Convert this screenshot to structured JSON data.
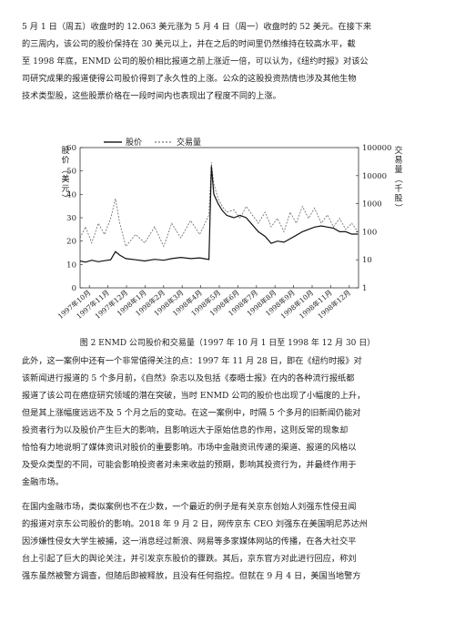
{
  "para1": [
    "5 月 1 日（周五）收盘时的 12.063 美元涨为 5 月 4 日（周一）收盘时的 52 美元。在接下来",
    "的三周内，该公司的股价保持在 30 美元以上，并在之后的时间里仍然维持在较高水平，截",
    "至 1998 年底，ENMD 公司的股价相比报道之前上涨近一倍，可以认为，《纽约时报》对该公",
    "司研究成果的报道使得公司股价得到了永久性的上涨。公众的这股投资热情也涉及其他生物",
    "技术类型股，这些股票价格在一段时间内也表现出了程度不同的上涨。"
  ],
  "chart_data": {
    "type": "line",
    "legend": [
      {
        "name": "股价",
        "style": "solid"
      },
      {
        "name": "交易量",
        "style": "dashed"
      }
    ],
    "ylabel_left": "股价（美元）",
    "ylabel_right": "交易量（千股）",
    "left_axis": {
      "min": 0,
      "max": 60,
      "ticks": [
        0,
        10,
        20,
        30,
        40,
        50,
        60
      ]
    },
    "right_axis": {
      "scale": "log",
      "ticks": [
        1,
        10,
        100,
        1000,
        10000,
        100000
      ]
    },
    "x_ticks": [
      "1997年10月",
      "1997年11月",
      "1997年12月",
      "1998年1月",
      "1998年2月",
      "1998年3月",
      "1998年4月",
      "1998年5月",
      "1998年6月",
      "1998年7月",
      "1998年8月",
      "1998年9月",
      "1998年10月",
      "1998年11月",
      "1998年12月"
    ],
    "price_series": [
      [
        "1997-10-01",
        11.5
      ],
      [
        "1997-10-10",
        11.0
      ],
      [
        "1997-10-20",
        11.8
      ],
      [
        "1997-10-31",
        11.2
      ],
      [
        "1997-11-10",
        11.6
      ],
      [
        "1997-11-20",
        12.0
      ],
      [
        "1997-11-28",
        15.5
      ],
      [
        "1997-12-05",
        14.0
      ],
      [
        "1997-12-15",
        12.5
      ],
      [
        "1997-12-31",
        12.0
      ],
      [
        "1998-01-15",
        11.5
      ],
      [
        "1998-01-31",
        12.2
      ],
      [
        "1998-02-15",
        11.8
      ],
      [
        "1998-02-28",
        12.5
      ],
      [
        "1998-03-15",
        13.0
      ],
      [
        "1998-03-31",
        12.5
      ],
      [
        "1998-04-15",
        12.8
      ],
      [
        "1998-04-30",
        12.1
      ],
      [
        "1998-05-04",
        52.0
      ],
      [
        "1998-05-08",
        40.0
      ],
      [
        "1998-05-15",
        36.0
      ],
      [
        "1998-05-22",
        33.0
      ],
      [
        "1998-05-29",
        31.0
      ],
      [
        "1998-06-10",
        30.0
      ],
      [
        "1998-06-20",
        31.0
      ],
      [
        "1998-06-30",
        30.0
      ],
      [
        "1998-07-10",
        27.0
      ],
      [
        "1998-07-20",
        24.0
      ],
      [
        "1998-07-31",
        22.0
      ],
      [
        "1998-08-10",
        19.0
      ],
      [
        "1998-08-20",
        20.0
      ],
      [
        "1998-08-31",
        19.5
      ],
      [
        "1998-09-10",
        21.0
      ],
      [
        "1998-09-20",
        22.5
      ],
      [
        "1998-09-30",
        24.0
      ],
      [
        "1998-10-10",
        25.0
      ],
      [
        "1998-10-20",
        26.0
      ],
      [
        "1998-10-31",
        26.5
      ],
      [
        "1998-11-10",
        26.0
      ],
      [
        "1998-11-20",
        25.5
      ],
      [
        "1998-11-30",
        24.0
      ],
      [
        "1998-12-10",
        24.0
      ],
      [
        "1998-12-20",
        23.0
      ],
      [
        "1998-12-30",
        23.0
      ]
    ],
    "volume_series": [
      [
        "1997-10-01",
        60
      ],
      [
        "1997-10-10",
        150
      ],
      [
        "1997-10-20",
        40
      ],
      [
        "1997-10-31",
        200
      ],
      [
        "1997-11-10",
        80
      ],
      [
        "1997-11-20",
        300
      ],
      [
        "1997-11-28",
        1500
      ],
      [
        "1997-12-05",
        200
      ],
      [
        "1997-12-15",
        30
      ],
      [
        "1997-12-31",
        80
      ],
      [
        "1998-01-15",
        40
      ],
      [
        "1998-01-31",
        150
      ],
      [
        "1998-02-15",
        30
      ],
      [
        "1998-02-28",
        200
      ],
      [
        "1998-03-15",
        60
      ],
      [
        "1998-03-31",
        250
      ],
      [
        "1998-04-15",
        80
      ],
      [
        "1998-04-30",
        400
      ],
      [
        "1998-05-04",
        30000
      ],
      [
        "1998-05-08",
        5000
      ],
      [
        "1998-05-15",
        1500
      ],
      [
        "1998-05-22",
        800
      ],
      [
        "1998-05-29",
        500
      ],
      [
        "1998-06-10",
        600
      ],
      [
        "1998-06-20",
        300
      ],
      [
        "1998-06-30",
        800
      ],
      [
        "1998-07-10",
        400
      ],
      [
        "1998-07-20",
        200
      ],
      [
        "1998-07-31",
        500
      ],
      [
        "1998-08-10",
        150
      ],
      [
        "1998-08-20",
        300
      ],
      [
        "1998-08-31",
        100
      ],
      [
        "1998-09-10",
        500
      ],
      [
        "1998-09-20",
        200
      ],
      [
        "1998-09-30",
        800
      ],
      [
        "1998-10-10",
        300
      ],
      [
        "1998-10-20",
        700
      ],
      [
        "1998-10-31",
        200
      ],
      [
        "1998-11-10",
        400
      ],
      [
        "1998-11-20",
        150
      ],
      [
        "1998-11-30",
        300
      ],
      [
        "1998-12-10",
        120
      ],
      [
        "1998-12-20",
        200
      ],
      [
        "1998-12-30",
        100
      ]
    ]
  },
  "caption": "图 2 ENMD 公司股价和交易量（1997 年 10 月 1 日至 1998 年 12 月 30 日）",
  "para2": [
    "此外，这一案例中还有一个非常值得关注的点：1997 年 11 月 28 日，即在《纽约时报》对",
    "该新闻进行报道的 5 个多月前，《自然》杂志以及包括《泰晤士报》在内的各种流行报纸都",
    "报道了该公司在癌症研究领域的潜在突破，当时 ENMD 公司的股价也出现了小幅度的上升，",
    "但是其上涨幅度远远不及 5 个月之后的变动。在这一案例中，时隔 5 个多月的旧新闻仍能对",
    "投资者行为以及股价产生巨大的影响，且影响远大于原始信息的作用，这则反常的现象却",
    "恰恰有力地说明了媒体资讯对股价的重要影响。市场中金融资讯传递的渠道、报道的风格以",
    "及受众类型的不同，可能会影响投资者对未来收益的预期，影响其投资行为，并最终作用于",
    "金融市场。"
  ],
  "para3": [
    "在国内金融市场，类似案例也不在少数，一个最近的例子是有关京东创始人刘强东性侵丑闻",
    "的报道对京东公司股价的影响。2018 年 9 月 2 日，网传京东 CEO 刘强东在美国明尼苏达州",
    "因涉嫌性侵女大学生被捕，这一消息经过新浪、网易等多家媒体网站的传播，在各大社交平",
    "台上引起了巨大的舆论关注，并引发京东股价的骤跌。其后，京东官方对此进行回应，称刘",
    "强东虽然被警方调查，但随后即被释放，且没有任何指控。但就在 9 月 4 日，美国当地警方"
  ]
}
